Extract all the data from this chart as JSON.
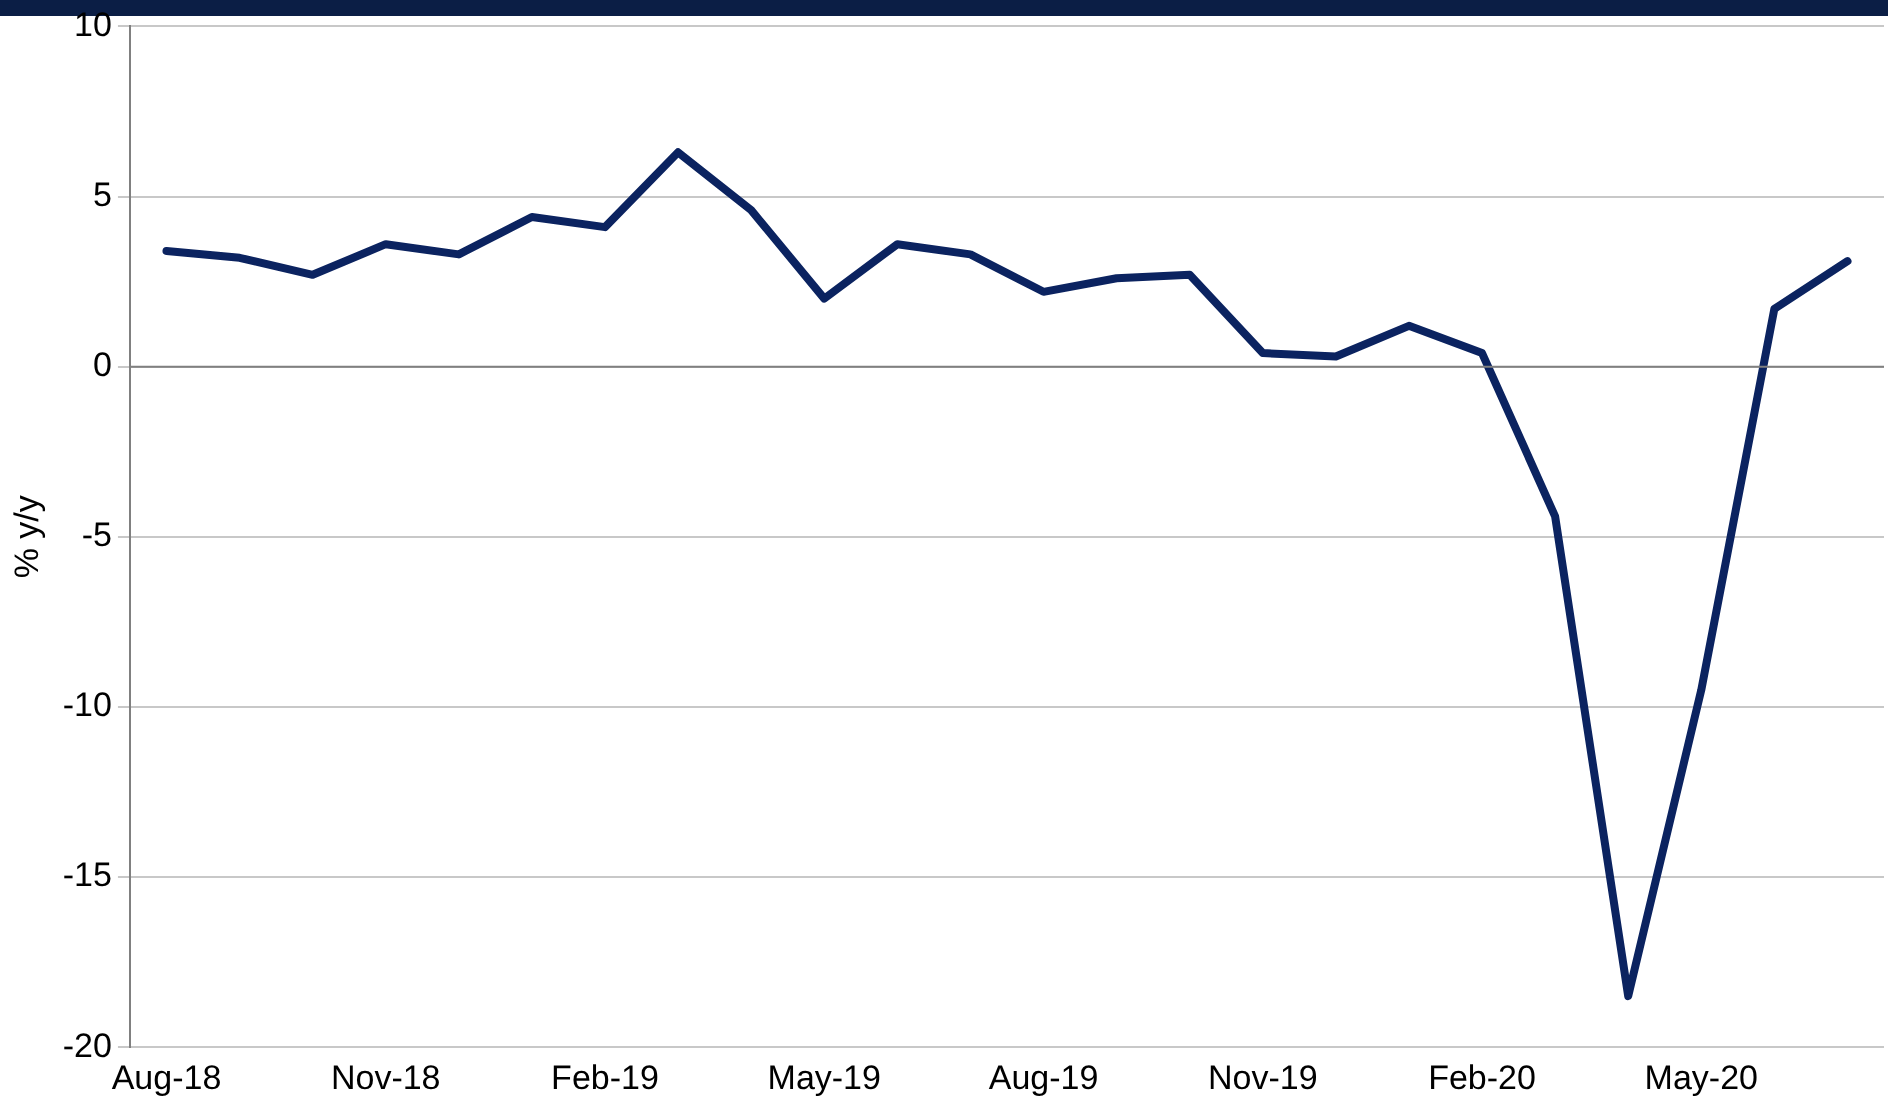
{
  "chart_data": {
    "type": "line",
    "ylabel": "% y/y",
    "categories": [
      "Aug-18",
      null,
      null,
      "Nov-18",
      null,
      null,
      "Feb-19",
      null,
      null,
      "May-19",
      null,
      null,
      "Aug-19",
      null,
      null,
      "Nov-19",
      null,
      null,
      "Feb-20",
      null,
      null,
      "May-20",
      null,
      null
    ],
    "series": [
      {
        "color": "#0b2360",
        "values": [
          3.4,
          3.2,
          2.7,
          3.6,
          3.3,
          4.4,
          4.1,
          6.3,
          4.6,
          2.0,
          3.6,
          3.3,
          2.2,
          2.6,
          2.7,
          0.4,
          0.3,
          1.2,
          0.4,
          -4.4,
          -18.5,
          -9.5,
          1.7,
          3.1
        ]
      }
    ],
    "ylim": [
      -20,
      10
    ],
    "yticks": [
      -20,
      -15,
      -10,
      -5,
      0,
      5,
      10
    ],
    "ref_lines": [
      {
        "axis": "y",
        "value": 0,
        "color": "#808080"
      }
    ],
    "grid": "y",
    "legend": false,
    "marker": "none",
    "line_style": "solid"
  }
}
